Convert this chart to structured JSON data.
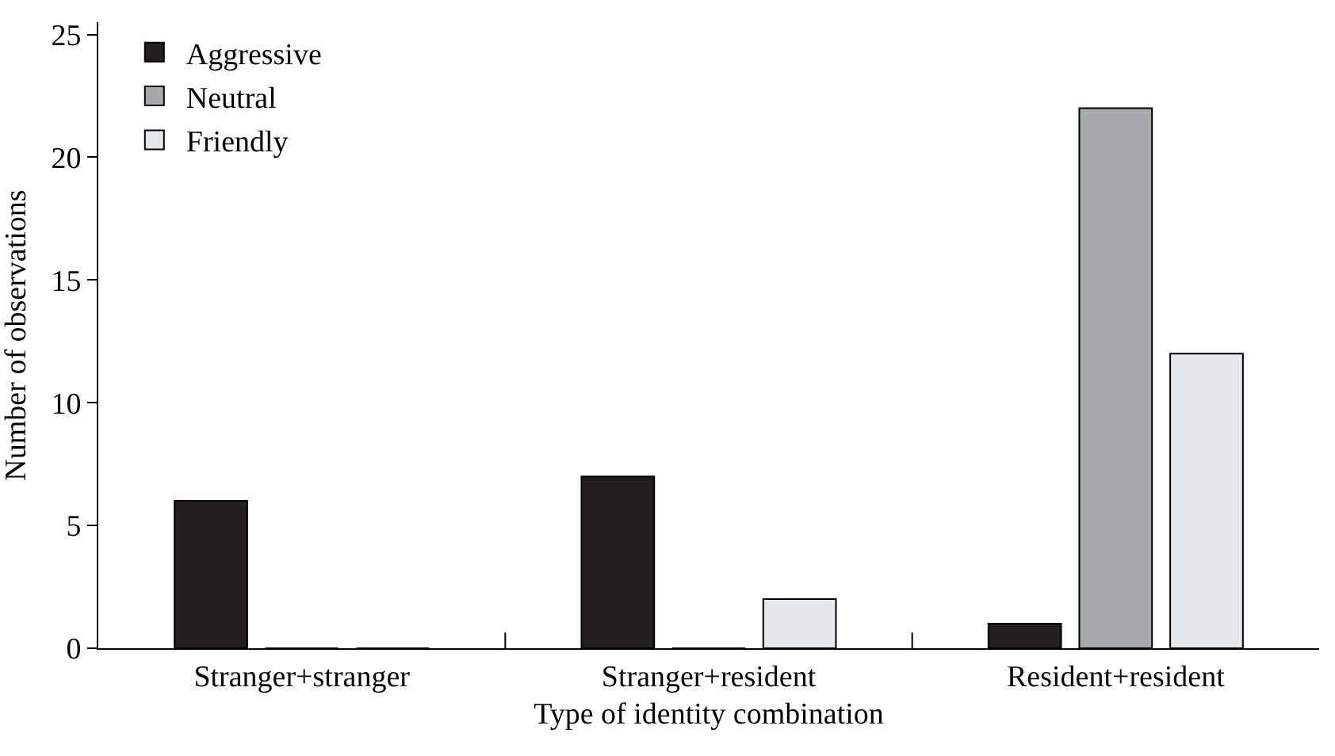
{
  "chart_data": {
    "type": "bar",
    "xlabel": "Type of identity combination",
    "ylabel": "Number of observations",
    "categories": [
      "Stranger+stranger",
      "Stranger+resident",
      "Resident+resident"
    ],
    "series": [
      {
        "name": "Aggressive",
        "color": "#231f20",
        "values": [
          6,
          7,
          1
        ]
      },
      {
        "name": "Neutral",
        "color": "#a7a9ac",
        "values": [
          0,
          0,
          22
        ]
      },
      {
        "name": "Friendly",
        "color": "#e6e7e8",
        "values": [
          0,
          2,
          12
        ]
      }
    ],
    "ylim": [
      0,
      25.5
    ],
    "yticks": [
      0,
      5,
      10,
      15,
      20,
      25
    ],
    "grid": false,
    "legend": "top left"
  }
}
